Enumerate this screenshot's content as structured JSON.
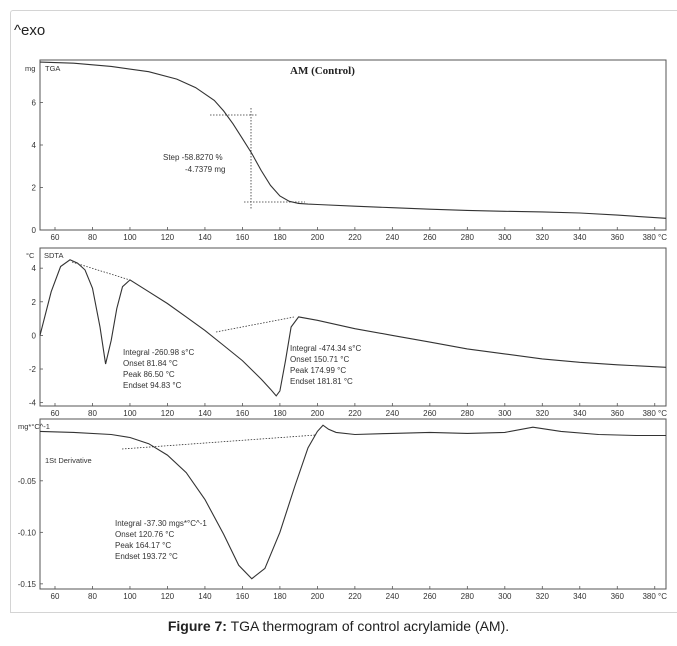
{
  "header": {
    "exo": "^exo"
  },
  "caption": {
    "label": "Figure 7:",
    "text": " TGA thermogram of control acrylamide (AM)."
  },
  "chart_data": [
    {
      "type": "line",
      "title": "AM (Control)",
      "panel_label": "TGA",
      "ylabel": "mg",
      "xlim": [
        52,
        386
      ],
      "ylim": [
        0,
        8
      ],
      "x_ticks": [
        60,
        80,
        100,
        120,
        140,
        160,
        180,
        200,
        220,
        240,
        260,
        280,
        300,
        320,
        340,
        360
      ],
      "x_ticks_with_unit": [
        {
          "value": 380,
          "label": "380 °C"
        }
      ],
      "y_ticks": [
        0,
        2,
        4,
        6
      ],
      "series": [
        {
          "x": [
            52,
            70,
            90,
            110,
            125,
            135,
            145,
            150,
            155,
            160,
            165,
            170,
            175,
            180,
            185,
            190,
            195,
            200,
            220,
            240,
            260,
            280,
            300,
            320,
            340,
            360,
            386
          ],
          "y": [
            7.9,
            7.85,
            7.7,
            7.45,
            7.1,
            6.7,
            6.1,
            5.6,
            5.0,
            4.3,
            3.6,
            2.8,
            2.1,
            1.6,
            1.35,
            1.25,
            1.22,
            1.2,
            1.12,
            1.05,
            0.98,
            0.92,
            0.88,
            0.85,
            0.8,
            0.7,
            0.55
          ]
        }
      ],
      "annotations": [
        {
          "lines": [
            "Step  -58.8270 %",
            "-4.7379 mg"
          ]
        }
      ]
    },
    {
      "type": "line",
      "panel_label": "SDTA",
      "ylabel": "°C",
      "xlim": [
        52,
        386
      ],
      "ylim": [
        -4.2,
        5.2
      ],
      "x_ticks": [
        60,
        80,
        100,
        120,
        140,
        160,
        180,
        200,
        220,
        240,
        260,
        280,
        300,
        320,
        340,
        360
      ],
      "x_ticks_with_unit": [
        {
          "value": 380,
          "label": "380 °C"
        }
      ],
      "y_ticks": [
        4,
        2,
        0,
        -2,
        -4
      ],
      "series": [
        {
          "x": [
            52,
            58,
            63,
            68,
            72,
            76,
            80,
            84,
            87,
            90,
            93,
            96,
            100,
            110,
            120,
            130,
            140,
            150,
            160,
            170,
            175,
            178,
            180,
            183,
            186,
            190,
            200,
            220,
            240,
            260,
            280,
            300,
            320,
            340,
            360,
            386
          ],
          "y": [
            0,
            2.6,
            4.1,
            4.5,
            4.3,
            3.9,
            2.8,
            0.5,
            -1.7,
            -0.3,
            1.6,
            2.9,
            3.3,
            2.6,
            1.9,
            1.1,
            0.3,
            -0.6,
            -1.5,
            -2.6,
            -3.2,
            -3.6,
            -3.3,
            -1.5,
            0.5,
            1.1,
            0.9,
            0.4,
            0.0,
            -0.4,
            -0.8,
            -1.1,
            -1.4,
            -1.6,
            -1.75,
            -1.9
          ]
        }
      ],
      "annotations": [
        {
          "lines": [
            "Integral  -260.98 s°C",
            "Onset   81.84 °C",
            "Peak    86.50 °C",
            "Endset  94.83 °C"
          ]
        },
        {
          "lines": [
            "Integral  -474.34 s°C",
            "Onset   150.71 °C",
            "Peak    174.99 °C",
            "Endset  181.81 °C"
          ]
        }
      ]
    },
    {
      "type": "line",
      "panel_label": "1St Derivative",
      "ylabel": "mg*°C^-1",
      "xlim": [
        52,
        386
      ],
      "ylim": [
        -0.155,
        0.01
      ],
      "x_ticks": [
        60,
        80,
        100,
        120,
        140,
        160,
        180,
        200,
        220,
        240,
        260,
        280,
        300,
        320,
        340,
        360
      ],
      "x_ticks_with_unit": [
        {
          "value": 380,
          "label": "380 °C"
        }
      ],
      "y_ticks": [
        -0.05,
        -0.1,
        -0.15
      ],
      "y_tick_labels": [
        "-0.05",
        "-0.10",
        "-0.15"
      ],
      "series": [
        {
          "x": [
            52,
            70,
            90,
            100,
            110,
            120,
            130,
            140,
            150,
            158,
            165,
            172,
            180,
            188,
            195,
            200,
            203,
            206,
            210,
            220,
            240,
            260,
            280,
            300,
            315,
            330,
            350,
            370,
            386
          ],
          "y": [
            -0.002,
            -0.003,
            -0.005,
            -0.008,
            -0.014,
            -0.025,
            -0.042,
            -0.068,
            -0.102,
            -0.132,
            -0.145,
            -0.135,
            -0.1,
            -0.055,
            -0.018,
            -0.002,
            0.004,
            0.0,
            -0.003,
            -0.005,
            -0.004,
            -0.003,
            -0.004,
            -0.003,
            0.002,
            -0.002,
            -0.005,
            -0.006,
            -0.006
          ]
        }
      ],
      "annotations": [
        {
          "lines": [
            "Integral  -37.30 mgs*°C^-1",
            "Onset   120.76 °C",
            "Peak    164.17 °C",
            "Endset  193.72 °C"
          ]
        }
      ]
    }
  ]
}
